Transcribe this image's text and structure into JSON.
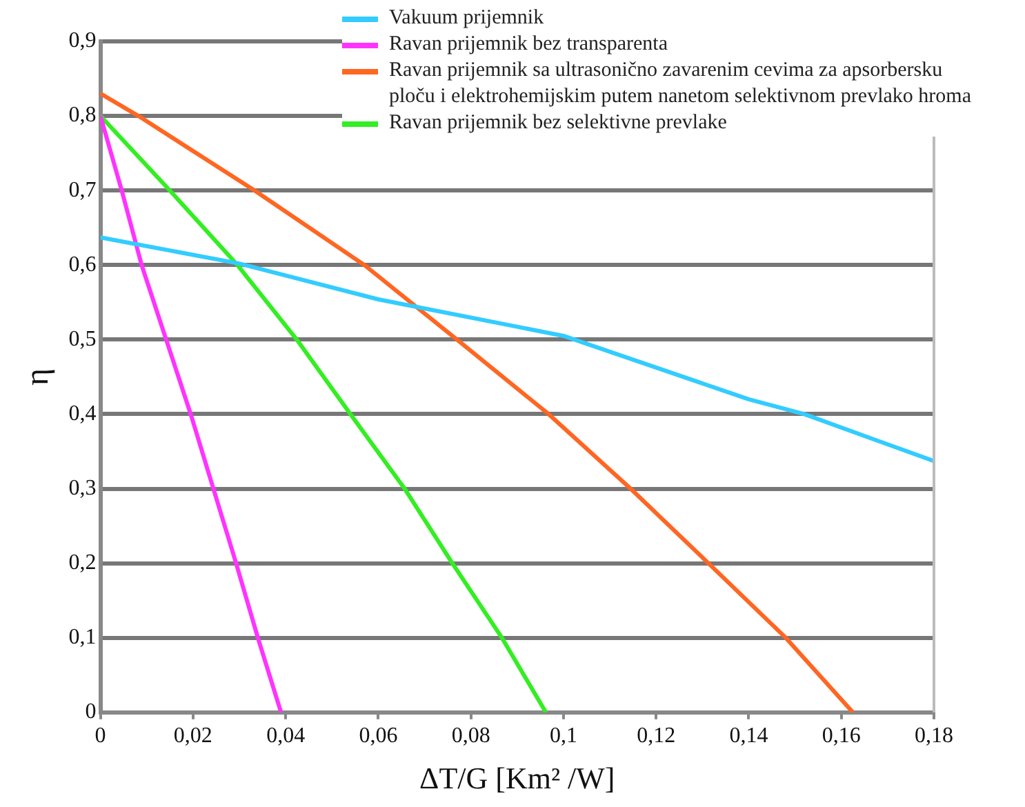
{
  "chart_data": {
    "type": "line",
    "xlabel": "ΔT/G [Km² /W]",
    "ylabel": "η",
    "xlim": [
      0,
      0.18
    ],
    "ylim": [
      0,
      0.9
    ],
    "xticks": [
      0,
      {
        "value": 0.02,
        "label": "0,02"
      },
      {
        "value": 0.04,
        "label": "0,04"
      },
      {
        "value": 0.06,
        "label": "0,06"
      },
      {
        "value": 0.08,
        "label": "0,08"
      },
      {
        "value": 0.1,
        "label": "0,1"
      },
      {
        "value": 0.12,
        "label": "0,12"
      },
      {
        "value": 0.14,
        "label": "0,14"
      },
      {
        "value": 0.16,
        "label": "0,16"
      },
      {
        "value": 0.18,
        "label": "0,18"
      }
    ],
    "yticks": [
      0,
      {
        "value": 0.1,
        "label": "0,1"
      },
      {
        "value": 0.2,
        "label": "0,2"
      },
      {
        "value": 0.3,
        "label": "0,3"
      },
      {
        "value": 0.4,
        "label": "0,4"
      },
      {
        "value": 0.5,
        "label": "0,5"
      },
      {
        "value": 0.6,
        "label": "0,6"
      },
      {
        "value": 0.7,
        "label": "0,7"
      },
      {
        "value": 0.8,
        "label": "0,8"
      },
      {
        "value": 0.9,
        "label": "0,9"
      }
    ],
    "grid": "y",
    "legend": "top right",
    "marker": "none",
    "line_style": "solid",
    "series": [
      {
        "name": "Vakuum  prijemnik",
        "color": "#33ccff",
        "x": [
          0,
          0.03,
          0.06,
          0.1,
          0.14,
          0.152,
          0.18
        ],
        "values": [
          0.637,
          0.602,
          0.554,
          0.505,
          0.42,
          0.4,
          0.337
        ]
      },
      {
        "name": "Ravan prijemnik bez transparenta",
        "color": "#ff33ff",
        "x": [
          0,
          0.0046,
          0.0089,
          0.0195,
          0.0244,
          0.0293,
          0.034,
          0.039
        ],
        "values": [
          0.8,
          0.7,
          0.6,
          0.4,
          0.3,
          0.2,
          0.1,
          0
        ]
      },
      {
        "name": "Ravan prijemnik sa ultrasonično zavarenim cevima za apsorbersku ploču i elektrohemijskim putem nanetom selektivnom prevlako hroma",
        "color": "#ff6622",
        "x": [
          0,
          0.0082,
          0.0333,
          0.057,
          0.077,
          0.0968,
          0.1145,
          0.1313,
          0.148,
          0.1625
        ],
        "values": [
          0.83,
          0.8,
          0.7,
          0.6,
          0.5,
          0.4,
          0.3,
          0.2,
          0.1,
          0
        ]
      },
      {
        "name": "Ravan prijemnik bez selektivne prevlake",
        "color": "#33ee22",
        "x": [
          0,
          0.015,
          0.0296,
          0.0424,
          0.054,
          0.0657,
          0.076,
          0.0867,
          0.0962
        ],
        "values": [
          0.8,
          0.7,
          0.6,
          0.5,
          0.4,
          0.3,
          0.2,
          0.1,
          0
        ]
      }
    ]
  }
}
